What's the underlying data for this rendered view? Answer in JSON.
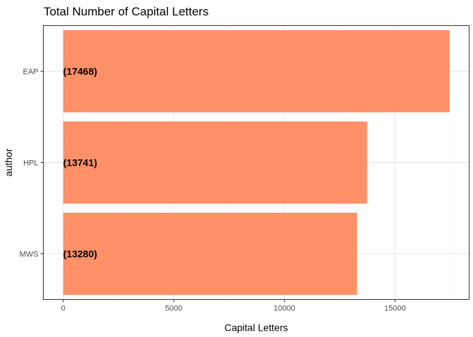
{
  "chart_data": {
    "type": "bar",
    "orientation": "horizontal",
    "title": "Total Number of  Capital Letters",
    "xlabel": "Capital Letters",
    "ylabel": "author",
    "categories": [
      "EAP",
      "HPL",
      "MWS"
    ],
    "values": [
      17468,
      13741,
      13280
    ],
    "data_labels": [
      "(17468)",
      "(13741)",
      "(13280)"
    ],
    "xlim": [
      -900,
      18350
    ],
    "xticks": [
      0,
      5000,
      10000,
      15000
    ],
    "xtick_labels": [
      "0",
      "5000",
      "10000",
      "15000"
    ],
    "bar_color": "#ff9068",
    "grid": true,
    "legend": "none"
  }
}
